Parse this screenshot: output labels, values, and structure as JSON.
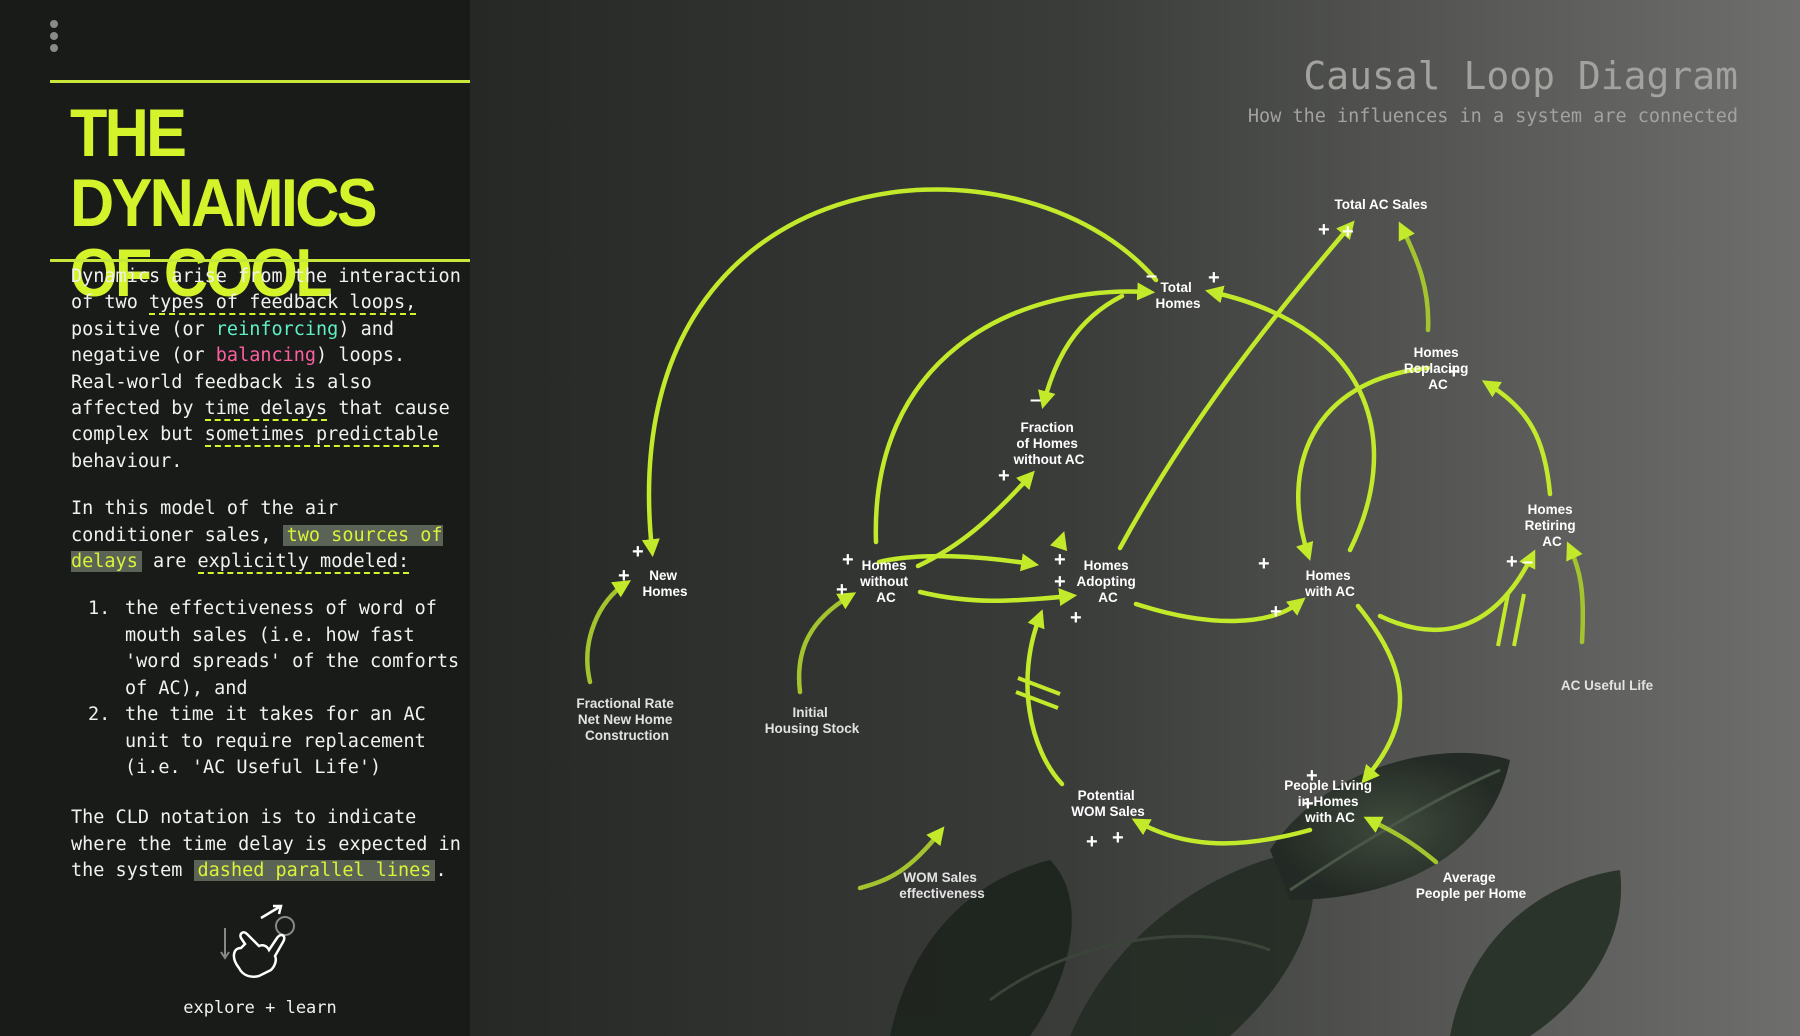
{
  "sidebar": {
    "title_line1": "THE DYNAMICS",
    "title_line2": "OF COOL",
    "p1": {
      "t1": "Dynamics arise from the interaction of two ",
      "types": "types of feedback loops,",
      "t2": " positive (or ",
      "reinforcing": "reinforcing",
      "t3": ") and negative (or ",
      "balancing": "balancing",
      "t4": ") loops. Real-world feedback is also affected by ",
      "delays": "time delays",
      "t5": " that cause complex but ",
      "predictable": "sometimes predictable",
      "t6": " behaviour."
    },
    "p2": {
      "t1": "In this model of the air conditioner sales, ",
      "sources": "two sources of delays",
      "t2": " are ",
      "explicit": "explicitly modeled:"
    },
    "list": [
      {
        "num": "1.",
        "text": "the effectiveness of word of mouth sales (i.e. how fast 'word spreads' of the comforts of AC), and"
      },
      {
        "num": "2.",
        "text": "the time it takes for an AC unit to require replacement (i.e. 'AC Useful Life')"
      }
    ],
    "p3": {
      "t1": "The CLD notation is to indicate where the time delay is expected in the system ",
      "dashed": "dashed parallel lines",
      "t2": "."
    },
    "explore_label": "explore + learn"
  },
  "header": {
    "title": "Causal Loop Diagram",
    "subtitle": "How the influences in a system are connected"
  },
  "diagram": {
    "accent_color": "#c2ea2a",
    "nodes": {
      "total_homes": [
        "Total",
        "Homes"
      ],
      "total_ac_sales": [
        "Total AC Sales"
      ],
      "homes_replacing": [
        "Homes",
        "Replacing",
        "AC"
      ],
      "fraction_without": [
        "Fraction",
        "of Homes",
        "without AC"
      ],
      "new_homes": [
        "New",
        "Homes"
      ],
      "homes_without": [
        "Homes",
        "without",
        "AC"
      ],
      "homes_adopting": [
        "Homes",
        "Adopting",
        "AC"
      ],
      "homes_with": [
        "Homes",
        "with AC"
      ],
      "homes_retiring": [
        "Homes",
        "Retiring",
        "AC"
      ],
      "fractional_rate": [
        "Fractional Rate",
        "Net New Home",
        "Construction"
      ],
      "initial_stock": [
        "Initial",
        "Housing Stock"
      ],
      "ac_useful_life": [
        "AC Useful Life"
      ],
      "potential_wom": [
        "Potential",
        "WOM Sales"
      ],
      "people_living": [
        "People Living",
        "in Homes",
        "with AC"
      ],
      "wom_effectiveness": [
        "WOM Sales",
        "effectiveness"
      ],
      "avg_people": [
        "Average",
        "People per Home"
      ]
    },
    "signs": {
      "plus": "+",
      "minus": "–"
    }
  }
}
